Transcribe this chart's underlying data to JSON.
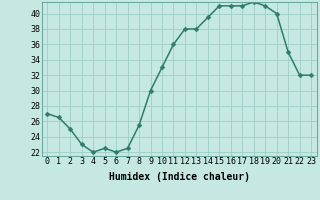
{
  "x": [
    0,
    1,
    2,
    3,
    4,
    5,
    6,
    7,
    8,
    9,
    10,
    11,
    12,
    13,
    14,
    15,
    16,
    17,
    18,
    19,
    20,
    21,
    22,
    23
  ],
  "y": [
    27,
    26.5,
    25,
    23,
    22,
    22.5,
    22,
    22.5,
    25.5,
    30,
    33,
    36,
    38,
    38,
    39.5,
    41,
    41,
    41,
    41.5,
    41,
    40,
    35,
    32,
    32
  ],
  "line_color": "#2d7d6b",
  "marker_color": "#2d7d6b",
  "bg_color": "#c5e8e2",
  "grid_color": "#9ecec7",
  "xlabel": "Humidex (Indice chaleur)",
  "ylim": [
    21.5,
    41.5
  ],
  "xlim": [
    -0.5,
    23.5
  ],
  "yticks": [
    22,
    24,
    26,
    28,
    30,
    32,
    34,
    36,
    38,
    40
  ],
  "xticks": [
    0,
    1,
    2,
    3,
    4,
    5,
    6,
    7,
    8,
    9,
    10,
    11,
    12,
    13,
    14,
    15,
    16,
    17,
    18,
    19,
    20,
    21,
    22,
    23
  ],
  "xlabel_fontsize": 7,
  "tick_fontsize": 6,
  "line_width": 1.1,
  "marker_size": 2.5
}
